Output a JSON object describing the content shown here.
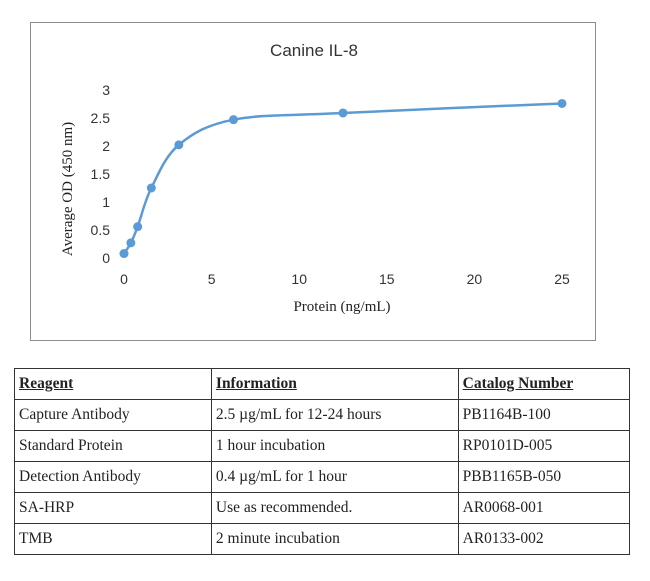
{
  "chart_data": {
    "type": "scatter",
    "title": "Canine IL-8",
    "xlabel": "Protein (ng/mL)",
    "ylabel": "Average OD (450 nm)",
    "xlim": [
      0,
      25
    ],
    "ylim": [
      0,
      3
    ],
    "x_ticks": [
      0,
      5,
      10,
      15,
      20,
      25
    ],
    "y_ticks": [
      0,
      0.5,
      1,
      1.5,
      2,
      2.5,
      3
    ],
    "x_tick_labels": [
      "0",
      "5",
      "10",
      "15",
      "20",
      "25"
    ],
    "y_tick_labels": [
      "0",
      "0.5",
      "1",
      "1.5",
      "2",
      "2.5",
      "3"
    ],
    "series": [
      {
        "name": "Canine IL-8",
        "color": "#5b9bd5",
        "x": [
          0,
          0.39,
          0.78,
          1.56,
          3.13,
          6.25,
          12.5,
          25
        ],
        "y": [
          0.08,
          0.27,
          0.56,
          1.25,
          2.02,
          2.47,
          2.59,
          2.76
        ]
      }
    ],
    "smooth_line": true
  },
  "table": {
    "headers": [
      "Reagent",
      "Information",
      "Catalog Number"
    ],
    "rows": [
      [
        "Capture Antibody",
        "2.5 µg/mL for 12-24 hours",
        "PB1164B-100"
      ],
      [
        "Standard Protein",
        "1 hour incubation",
        "RP0101D-005"
      ],
      [
        "Detection Antibody",
        "0.4 µg/mL for 1 hour",
        "PBB1165B-050"
      ],
      [
        "SA-HRP",
        "Use as recommended.",
        "AR0068-001"
      ],
      [
        "TMB",
        "2 minute incubation",
        "AR0133-002"
      ]
    ]
  }
}
